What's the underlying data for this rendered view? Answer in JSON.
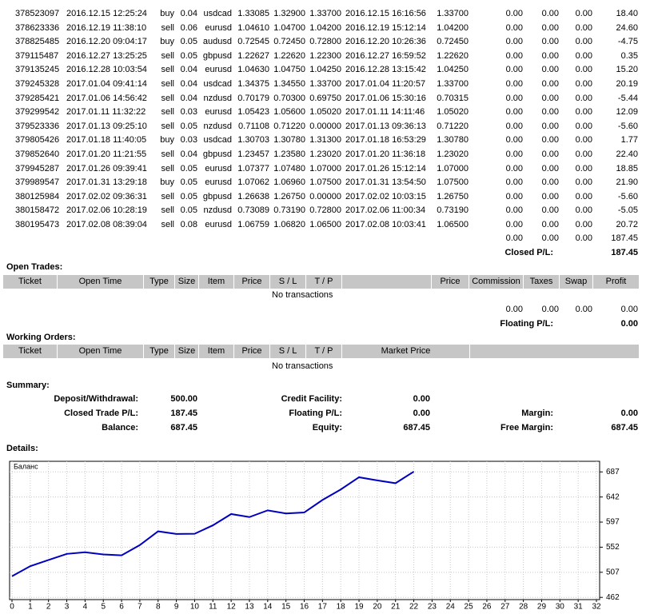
{
  "closed_trades": {
    "rows": [
      [
        "378523097",
        "2016.12.15 12:25:24",
        "buy",
        "0.04",
        "usdcad",
        "1.33085",
        "1.32900",
        "1.33700",
        "2016.12.15 16:16:56",
        "1.33700",
        "0.00",
        "0.00",
        "0.00",
        "18.40"
      ],
      [
        "378623336",
        "2016.12.19 11:38:10",
        "sell",
        "0.06",
        "eurusd",
        "1.04610",
        "1.04700",
        "1.04200",
        "2016.12.19 15:12:14",
        "1.04200",
        "0.00",
        "0.00",
        "0.00",
        "24.60"
      ],
      [
        "378825485",
        "2016.12.20 09:04:17",
        "buy",
        "0.05",
        "audusd",
        "0.72545",
        "0.72450",
        "0.72800",
        "2016.12.20 10:26:36",
        "0.72450",
        "0.00",
        "0.00",
        "0.00",
        "-4.75"
      ],
      [
        "379115487",
        "2016.12.27 13:25:25",
        "sell",
        "0.05",
        "gbpusd",
        "1.22627",
        "1.22620",
        "1.22300",
        "2016.12.27 16:59:52",
        "1.22620",
        "0.00",
        "0.00",
        "0.00",
        "0.35"
      ],
      [
        "379135245",
        "2016.12.28 10:03:54",
        "sell",
        "0.04",
        "eurusd",
        "1.04630",
        "1.04750",
        "1.04250",
        "2016.12.28 13:15:42",
        "1.04250",
        "0.00",
        "0.00",
        "0.00",
        "15.20"
      ],
      [
        "379245328",
        "2017.01.04 09:41:14",
        "sell",
        "0.04",
        "usdcad",
        "1.34375",
        "1.34550",
        "1.33700",
        "2017.01.04 11:20:57",
        "1.33700",
        "0.00",
        "0.00",
        "0.00",
        "20.19"
      ],
      [
        "379285421",
        "2017.01.06 14:56:42",
        "sell",
        "0.04",
        "nzdusd",
        "0.70179",
        "0.70300",
        "0.69750",
        "2017.01.06 15:30:16",
        "0.70315",
        "0.00",
        "0.00",
        "0.00",
        "-5.44"
      ],
      [
        "379299542",
        "2017.01.11 11:32:22",
        "sell",
        "0.03",
        "eurusd",
        "1.05423",
        "1.05600",
        "1.05020",
        "2017.01.11 14:11:46",
        "1.05020",
        "0.00",
        "0.00",
        "0.00",
        "12.09"
      ],
      [
        "379523336",
        "2017.01.13 09:25:10",
        "sell",
        "0.05",
        "nzdusd",
        "0.71108",
        "0.71220",
        "0.00000",
        "2017.01.13 09:36:13",
        "0.71220",
        "0.00",
        "0.00",
        "0.00",
        "-5.60"
      ],
      [
        "379805426",
        "2017.01.18 11:40:05",
        "buy",
        "0.03",
        "usdcad",
        "1.30703",
        "1.30780",
        "1.31300",
        "2017.01.18 16:53:29",
        "1.30780",
        "0.00",
        "0.00",
        "0.00",
        "1.77"
      ],
      [
        "379852640",
        "2017.01.20 11:21:55",
        "sell",
        "0.04",
        "gbpusd",
        "1.23457",
        "1.23580",
        "1.23020",
        "2017.01.20 11:36:18",
        "1.23020",
        "0.00",
        "0.00",
        "0.00",
        "22.40"
      ],
      [
        "379945287",
        "2017.01.26 09:39:41",
        "sell",
        "0.05",
        "eurusd",
        "1.07377",
        "1.07480",
        "1.07000",
        "2017.01.26 15:12:14",
        "1.07000",
        "0.00",
        "0.00",
        "0.00",
        "18.85"
      ],
      [
        "379989547",
        "2017.01.31 13:29:18",
        "buy",
        "0.05",
        "eurusd",
        "1.07062",
        "1.06960",
        "1.07500",
        "2017.01.31 13:54:50",
        "1.07500",
        "0.00",
        "0.00",
        "0.00",
        "21.90"
      ],
      [
        "380125984",
        "2017.02.02 09:36:31",
        "sell",
        "0.05",
        "gbpusd",
        "1.26638",
        "1.26750",
        "0.00000",
        "2017.02.02 10:03:15",
        "1.26750",
        "0.00",
        "0.00",
        "0.00",
        "-5.60"
      ],
      [
        "380158472",
        "2017.02.06 10:28:19",
        "sell",
        "0.05",
        "nzdusd",
        "0.73089",
        "0.73190",
        "0.72800",
        "2017.02.06 11:00:34",
        "0.73190",
        "0.00",
        "0.00",
        "0.00",
        "-5.05"
      ],
      [
        "380195473",
        "2017.02.08 08:39:04",
        "sell",
        "0.08",
        "eurusd",
        "1.06759",
        "1.06820",
        "1.06500",
        "2017.02.08 10:03:41",
        "1.06500",
        "0.00",
        "0.00",
        "0.00",
        "20.72"
      ]
    ],
    "totals": [
      "0.00",
      "0.00",
      "0.00",
      "187.45"
    ],
    "pl_label": "Closed P/L:",
    "pl_value": "187.45"
  },
  "open_trades": {
    "title": "Open Trades:",
    "headers": [
      "Ticket",
      "Open Time",
      "Type",
      "Size",
      "Item",
      "Price",
      "S / L",
      "T / P",
      "Price",
      "Commission",
      "Taxes",
      "Swap",
      "Profit"
    ],
    "message": "No transactions",
    "totals": [
      "0.00",
      "0.00",
      "0.00",
      "0.00"
    ],
    "pl_label": "Floating P/L:",
    "pl_value": "0.00"
  },
  "working_orders": {
    "title": "Working Orders:",
    "headers": [
      "Ticket",
      "Open Time",
      "Type",
      "Size",
      "Item",
      "Price",
      "S / L",
      "T / P",
      "Market Price"
    ],
    "message": "No transactions"
  },
  "summary": {
    "title": "Summary:",
    "rows": [
      [
        {
          "label": "Deposit/Withdrawal:",
          "value": "500.00"
        },
        {
          "label": "Credit Facility:",
          "value": "0.00"
        }
      ],
      [
        {
          "label": "Closed Trade P/L:",
          "value": "187.45"
        },
        {
          "label": "Floating P/L:",
          "value": "0.00"
        },
        {
          "label": "Margin:",
          "value": "0.00"
        }
      ],
      [
        {
          "label": "Balance:",
          "value": "687.45"
        },
        {
          "label": "Equity:",
          "value": "687.45"
        },
        {
          "label": "Free Margin:",
          "value": "687.45"
        }
      ]
    ]
  },
  "details_title": "Details:",
  "chart_data": {
    "type": "line",
    "x": [
      0,
      1,
      2,
      3,
      4,
      5,
      6,
      7,
      8,
      9,
      10,
      11,
      12,
      13,
      14,
      15,
      16,
      17,
      18,
      19,
      20,
      21,
      22
    ],
    "series": [
      {
        "name": "Баланс",
        "color": "#0000c0",
        "values": [
          500,
          518,
          529,
          540,
          543,
          539,
          537.42,
          555.82,
          580.42,
          575.67,
          576.02,
          591.22,
          611.41,
          605.97,
          618.06,
          612.46,
          614.23,
          636.63,
          655.48,
          677.38,
          671.78,
          666.73,
          687.45
        ]
      }
    ],
    "xlim": [
      0,
      32
    ],
    "xticks": [
      0,
      1,
      2,
      3,
      4,
      5,
      6,
      7,
      8,
      9,
      10,
      11,
      12,
      13,
      14,
      15,
      16,
      17,
      18,
      19,
      20,
      21,
      22,
      23,
      24,
      25,
      26,
      27,
      28,
      29,
      30,
      31,
      32
    ],
    "ylim": [
      458,
      706
    ],
    "yticks": [
      687,
      642,
      597,
      552,
      507,
      462
    ],
    "grid": true
  }
}
